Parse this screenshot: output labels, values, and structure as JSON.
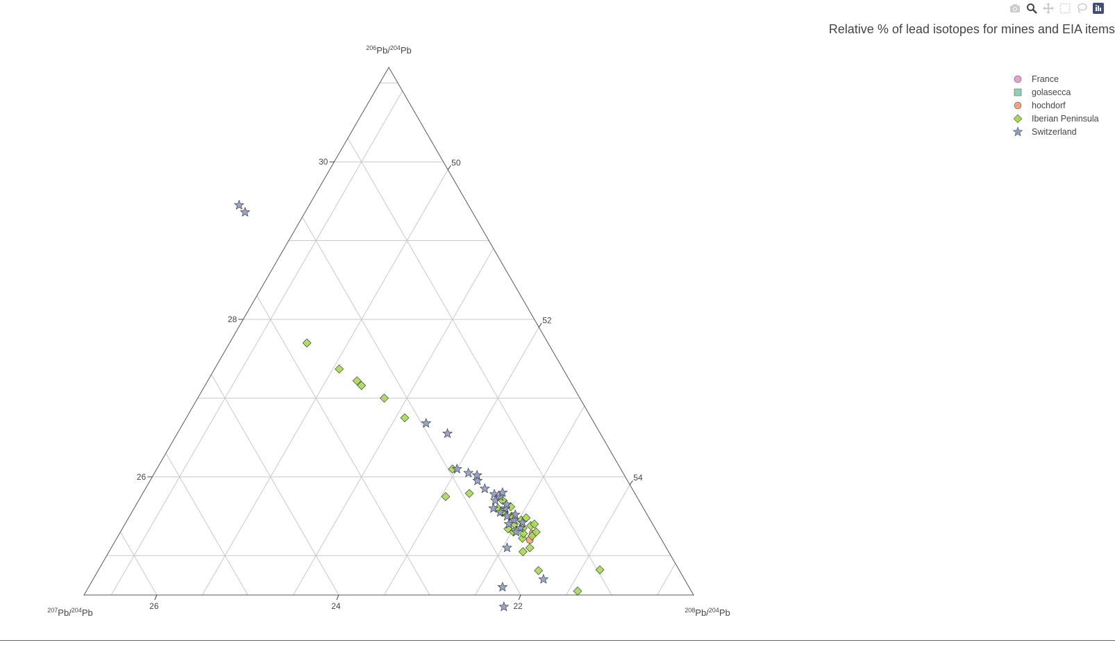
{
  "modebar": {
    "buttons": [
      {
        "name": "camera-icon",
        "label": "Download plot as a png"
      },
      {
        "name": "zoom-icon",
        "label": "Zoom"
      },
      {
        "name": "pan-icon",
        "label": "Pan"
      },
      {
        "name": "box-select-icon",
        "label": "Box Select"
      },
      {
        "name": "lasso-select-icon",
        "label": "Lasso Select"
      },
      {
        "name": "plotly-logo-icon",
        "label": "Produced with Plotly"
      }
    ]
  },
  "chart_data": {
    "type": "scatter",
    "subtype": "ternary",
    "title": "Relative % of lead isotopes for mines and EIA items",
    "axes": {
      "a": {
        "label_base": "Pb/",
        "label_html": [
          "206",
          "Pb/",
          "204",
          "Pb"
        ],
        "ticks": [
          26,
          28,
          30
        ],
        "range": [
          24.5,
          31.3
        ]
      },
      "b": {
        "label_html": [
          "207",
          "Pb/",
          "204",
          "Pb"
        ],
        "ticks": [
          22,
          24,
          26
        ],
        "range": [
          20.1,
          27.3
        ]
      },
      "c": {
        "label_html": [
          "208",
          "Pb/",
          "204",
          "Pb"
        ],
        "ticks": [
          50,
          52,
          54
        ],
        "range": [
          48.7,
          54.8
        ]
      }
    },
    "grid": true,
    "legend_position": "top-right",
    "series": [
      {
        "name": "France",
        "symbol": "circle",
        "color": "#e7a3cf",
        "points": [
          [
            25.45,
            21.62,
            52.93
          ],
          [
            25.55,
            21.65,
            52.8
          ],
          [
            25.5,
            21.58,
            52.92
          ]
        ]
      },
      {
        "name": "golasecca",
        "symbol": "square",
        "color": "#8fd1bb",
        "points": []
      },
      {
        "name": "hochdorf",
        "symbol": "circle",
        "color": "#f4a37c",
        "points": [
          [
            25.2,
            21.55,
            53.25
          ],
          [
            25.28,
            21.48,
            53.24
          ]
        ]
      },
      {
        "name": "Iberian Peninsula",
        "symbol": "diamond",
        "color": "#a6d854",
        "points": [
          [
            27.7,
            22.75,
            49.55
          ],
          [
            27.37,
            22.56,
            50.07
          ],
          [
            27.22,
            22.44,
            50.34
          ],
          [
            27.16,
            22.42,
            50.42
          ],
          [
            27.0,
            22.25,
            50.75
          ],
          [
            26.75,
            22.15,
            51.1
          ],
          [
            26.1,
            21.95,
            51.95
          ],
          [
            25.75,
            22.2,
            52.05
          ],
          [
            25.79,
            21.92,
            52.29
          ],
          [
            25.6,
            21.7,
            52.7
          ],
          [
            25.4,
            21.62,
            52.98
          ],
          [
            25.3,
            21.68,
            53.02
          ],
          [
            25.25,
            21.5,
            53.25
          ],
          [
            25.35,
            21.55,
            53.1
          ],
          [
            25.5,
            21.6,
            52.9
          ],
          [
            25.45,
            21.52,
            53.03
          ],
          [
            25.38,
            21.45,
            53.17
          ],
          [
            25.62,
            21.55,
            52.83
          ],
          [
            25.7,
            21.6,
            52.7
          ],
          [
            25.4,
            21.4,
            53.2
          ],
          [
            25.3,
            21.43,
            53.27
          ],
          [
            25.22,
            21.62,
            53.16
          ],
          [
            25.34,
            21.72,
            52.94
          ],
          [
            25.55,
            21.68,
            52.77
          ],
          [
            25.48,
            21.45,
            53.07
          ],
          [
            25.28,
            21.58,
            53.14
          ],
          [
            25.1,
            21.6,
            53.3
          ],
          [
            25.05,
            21.7,
            53.25
          ],
          [
            24.82,
            20.97,
            54.21
          ],
          [
            24.81,
            21.65,
            53.54
          ],
          [
            24.55,
            21.35,
            54.1
          ]
        ]
      },
      {
        "name": "Switzerland",
        "symbol": "star",
        "color": "#8c9cc3",
        "points": [
          [
            29.45,
            22.62,
            47.93
          ],
          [
            29.36,
            22.6,
            48.04
          ],
          [
            26.68,
            21.95,
            51.37
          ],
          [
            26.55,
            21.78,
            51.67
          ],
          [
            26.1,
            21.9,
            52.0
          ],
          [
            26.05,
            21.8,
            52.15
          ],
          [
            25.95,
            21.75,
            52.3
          ],
          [
            26.02,
            21.72,
            52.26
          ],
          [
            25.85,
            21.72,
            52.43
          ],
          [
            25.78,
            21.65,
            52.57
          ],
          [
            25.7,
            21.68,
            52.62
          ],
          [
            25.6,
            21.62,
            52.78
          ],
          [
            25.55,
            21.7,
            52.75
          ],
          [
            25.5,
            21.65,
            52.85
          ],
          [
            25.45,
            21.6,
            52.95
          ],
          [
            25.65,
            21.58,
            52.77
          ],
          [
            25.75,
            21.6,
            52.65
          ],
          [
            25.4,
            21.68,
            52.92
          ],
          [
            25.35,
            21.58,
            53.07
          ],
          [
            25.6,
            21.75,
            52.65
          ],
          [
            25.52,
            21.55,
            52.93
          ],
          [
            25.42,
            21.52,
            53.06
          ],
          [
            25.1,
            21.85,
            53.05
          ],
          [
            24.7,
            21.65,
            53.65
          ],
          [
            24.6,
            22.15,
            53.25
          ],
          [
            24.35,
            22.26,
            53.39
          ],
          [
            25.8,
            21.55,
            52.65
          ],
          [
            25.3,
            21.65,
            53.05
          ]
        ]
      }
    ]
  }
}
